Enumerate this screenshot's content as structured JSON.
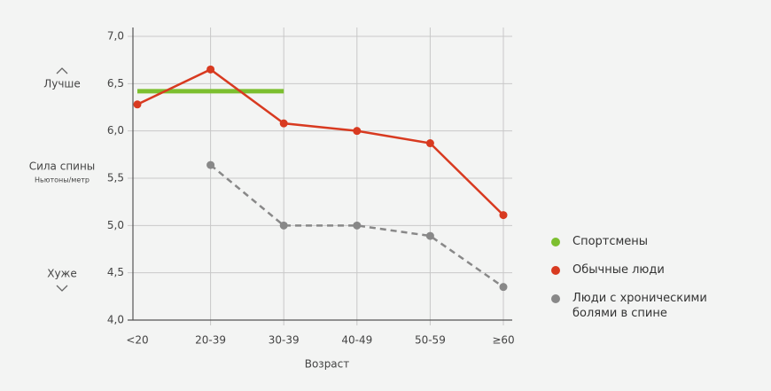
{
  "chart_data": {
    "type": "line",
    "categories": [
      "<20",
      "20-39",
      "30-39",
      "40-49",
      "50-59",
      "≥60"
    ],
    "x_label": "Возраст",
    "y_label": "Сила спины",
    "y_unit": "Ньютоны/метр",
    "better_label": "Лучше",
    "worse_label": "Хуже",
    "ylim": [
      4,
      7
    ],
    "yticks": [
      {
        "value": 4,
        "label": "4,0"
      },
      {
        "value": 4.5,
        "label": "4,5"
      },
      {
        "value": 5,
        "label": "5,0"
      },
      {
        "value": 5.5,
        "label": "5,5"
      },
      {
        "value": 6,
        "label": "6,0"
      },
      {
        "value": 6.5,
        "label": "6,5"
      },
      {
        "value": 7,
        "label": "7,0"
      }
    ],
    "grid": true,
    "legend": "right",
    "series": [
      {
        "name": "Спортсмены",
        "color": "#7cbf2f",
        "line_style": "solid",
        "markers": false,
        "values": [
          6.42,
          6.42,
          6.42,
          null,
          null,
          null
        ]
      },
      {
        "name": "Обычные люди",
        "color": "#d83a20",
        "line_style": "solid",
        "markers": true,
        "values": [
          6.28,
          6.65,
          6.08,
          6.0,
          5.87,
          5.11
        ]
      },
      {
        "name": "Люди с хроническими болями в спине",
        "color": "#888888",
        "line_style": "dashed",
        "markers": true,
        "values": [
          null,
          5.64,
          5.0,
          5.0,
          4.89,
          4.35
        ]
      }
    ]
  }
}
